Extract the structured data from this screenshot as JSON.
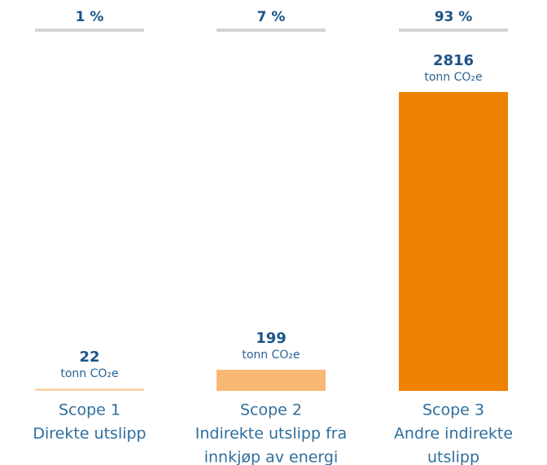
{
  "chart_data": {
    "type": "bar",
    "categories": [
      [
        "Scope 1",
        "Direkte utslipp"
      ],
      [
        "Scope 2",
        "Indirekte utslipp fra",
        "innkjøp av energi"
      ],
      [
        "Scope 3",
        "Andre indirekte",
        "utslipp"
      ]
    ],
    "values": [
      22,
      199,
      2816
    ],
    "unit": "tonn CO₂e",
    "shares": [
      "1 %",
      "7 %",
      "93 %"
    ],
    "colors": [
      "#fcd3ac",
      "#f9b774",
      "#ef8200"
    ],
    "ylim": [
      0,
      2816
    ]
  }
}
